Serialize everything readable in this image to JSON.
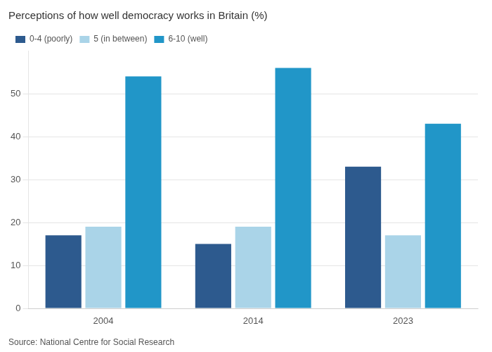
{
  "chart_data": {
    "type": "bar",
    "title": "Perceptions of how well democracy works in Britain (%)",
    "categories": [
      "2004",
      "2014",
      "2023"
    ],
    "series": [
      {
        "name": "0-4 (poorly)",
        "color": "#2d5a8e",
        "values": [
          17,
          15,
          33
        ]
      },
      {
        "name": "5 (in between)",
        "color": "#aad4e8",
        "values": [
          19,
          19,
          17
        ]
      },
      {
        "name": "6-10 (well)",
        "color": "#2196c8",
        "values": [
          54,
          56,
          43
        ]
      }
    ],
    "ylim": [
      0,
      60
    ],
    "yticks": [
      0,
      10,
      20,
      30,
      40,
      50
    ],
    "grid": true,
    "legend": "upper left",
    "annotations": [
      "Source: National Centre for Social Research"
    ]
  }
}
